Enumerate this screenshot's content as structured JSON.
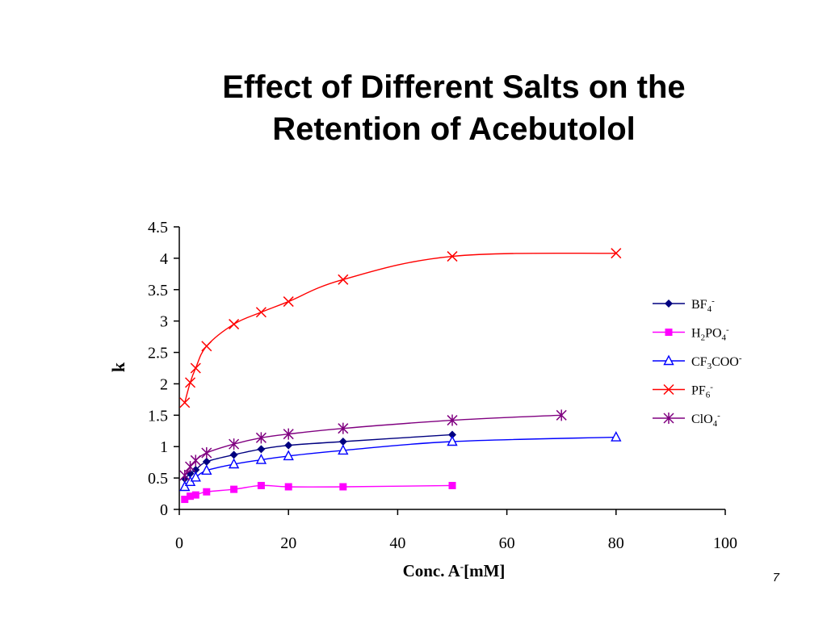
{
  "slide": {
    "title_line1": "Effect of Different Salts on the",
    "title_line2": "Retention of Acebutolol",
    "page_number": "7"
  },
  "chart_data": {
    "type": "line",
    "title": "Effect of Different Salts on the Retention of Acebutolol",
    "xlabel": "Conc. A-[mM]",
    "ylabel": "k",
    "xlim": [
      0,
      100
    ],
    "ylim": [
      0,
      4.5
    ],
    "x_ticks": [
      "0",
      "20",
      "40",
      "60",
      "80",
      "100"
    ],
    "y_ticks": [
      "0",
      "0.5",
      "1",
      "1.5",
      "2",
      "2.5",
      "3",
      "3.5",
      "4",
      "4.5"
    ],
    "grid": false,
    "legend_position": "right",
    "series": [
      {
        "name": "BF4-",
        "color": "#000080",
        "marker": "diamond",
        "points": [
          [
            1,
            0.49
          ],
          [
            2,
            0.57
          ],
          [
            3,
            0.63
          ],
          [
            5,
            0.76
          ],
          [
            10,
            0.87
          ],
          [
            15,
            0.96
          ],
          [
            20,
            1.02
          ],
          [
            30,
            1.08
          ],
          [
            50,
            1.19
          ]
        ]
      },
      {
        "name": "H2PO4-",
        "color": "#ff00ff",
        "marker": "square",
        "points": [
          [
            1,
            0.16
          ],
          [
            2,
            0.21
          ],
          [
            3,
            0.23
          ],
          [
            5,
            0.28
          ],
          [
            10,
            0.32
          ],
          [
            15,
            0.38
          ],
          [
            20,
            0.36
          ],
          [
            30,
            0.36
          ],
          [
            50,
            0.38
          ]
        ]
      },
      {
        "name": "CF3COO-",
        "color": "#0000ff",
        "marker": "triangle",
        "points": [
          [
            1,
            0.36
          ],
          [
            2,
            0.44
          ],
          [
            3,
            0.51
          ],
          [
            5,
            0.62
          ],
          [
            10,
            0.72
          ],
          [
            15,
            0.79
          ],
          [
            20,
            0.85
          ],
          [
            30,
            0.94
          ],
          [
            50,
            1.08
          ],
          [
            80,
            1.15
          ]
        ]
      },
      {
        "name": "PF6-",
        "color": "#ff0000",
        "marker": "x",
        "points": [
          [
            1,
            1.7
          ],
          [
            2,
            2.02
          ],
          [
            3,
            2.25
          ],
          [
            5,
            2.6
          ],
          [
            10,
            2.95
          ],
          [
            15,
            3.14
          ],
          [
            20,
            3.31
          ],
          [
            30,
            3.66
          ],
          [
            50,
            4.03
          ],
          [
            80,
            4.08
          ]
        ]
      },
      {
        "name": "ClO4-",
        "color": "#800080",
        "marker": "star",
        "points": [
          [
            1,
            0.54
          ],
          [
            2,
            0.68
          ],
          [
            3,
            0.78
          ],
          [
            5,
            0.9
          ],
          [
            10,
            1.04
          ],
          [
            15,
            1.14
          ],
          [
            20,
            1.2
          ],
          [
            30,
            1.29
          ],
          [
            50,
            1.42
          ],
          [
            70,
            1.5
          ]
        ]
      }
    ],
    "legend_labels": [
      {
        "base": "BF",
        "sub": "4",
        "sup": "-",
        "tail": ""
      },
      {
        "base": "H",
        "sub": "2",
        "mid": "PO",
        "sub2": "4",
        "sup": "-",
        "tail": ""
      },
      {
        "base": "CF",
        "sub": "3",
        "tail": "COO",
        "sup": "-"
      },
      {
        "base": "PF",
        "sub": "6",
        "sup": "-",
        "tail": ""
      },
      {
        "base": "ClO",
        "sub": "4",
        "sup": "-",
        "tail": ""
      }
    ]
  }
}
